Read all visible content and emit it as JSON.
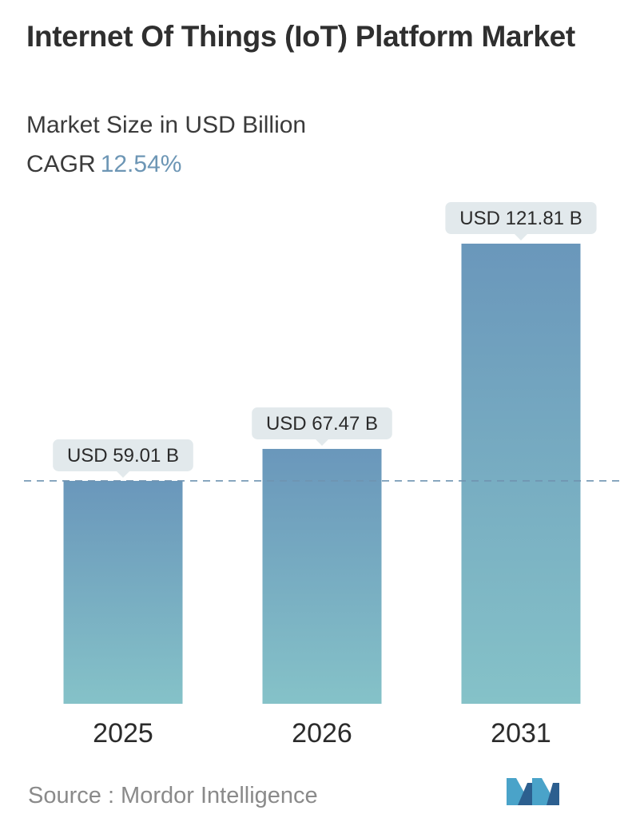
{
  "header": {
    "title": "Internet Of Things (IoT) Platform Market",
    "subtitle": "Market Size in USD Billion",
    "cagr_label": "CAGR",
    "cagr_value": "12.54%"
  },
  "chart_data": {
    "type": "bar",
    "categories": [
      "2025",
      "2026",
      "2031"
    ],
    "values": [
      59.01,
      67.47,
      121.81
    ],
    "data_labels": [
      "USD 59.01 B",
      "USD 67.47 B",
      "USD 121.81 B"
    ],
    "reference_line": 59.01,
    "title": "Internet Of Things (IoT) Platform Market",
    "subtitle": "Market Size in USD Billion",
    "grid": false,
    "colors": {
      "bar_top": "#6a97bb",
      "bar_bottom": "#85c2c8",
      "label_bg": "#e2e9ec",
      "dash_line": "#6f93b0",
      "tick_text": "#2b2b2b"
    }
  },
  "footer": {
    "source": "Source :  Mordor Intelligence",
    "logo_icon": "mordor-intelligence-logo-icon"
  }
}
